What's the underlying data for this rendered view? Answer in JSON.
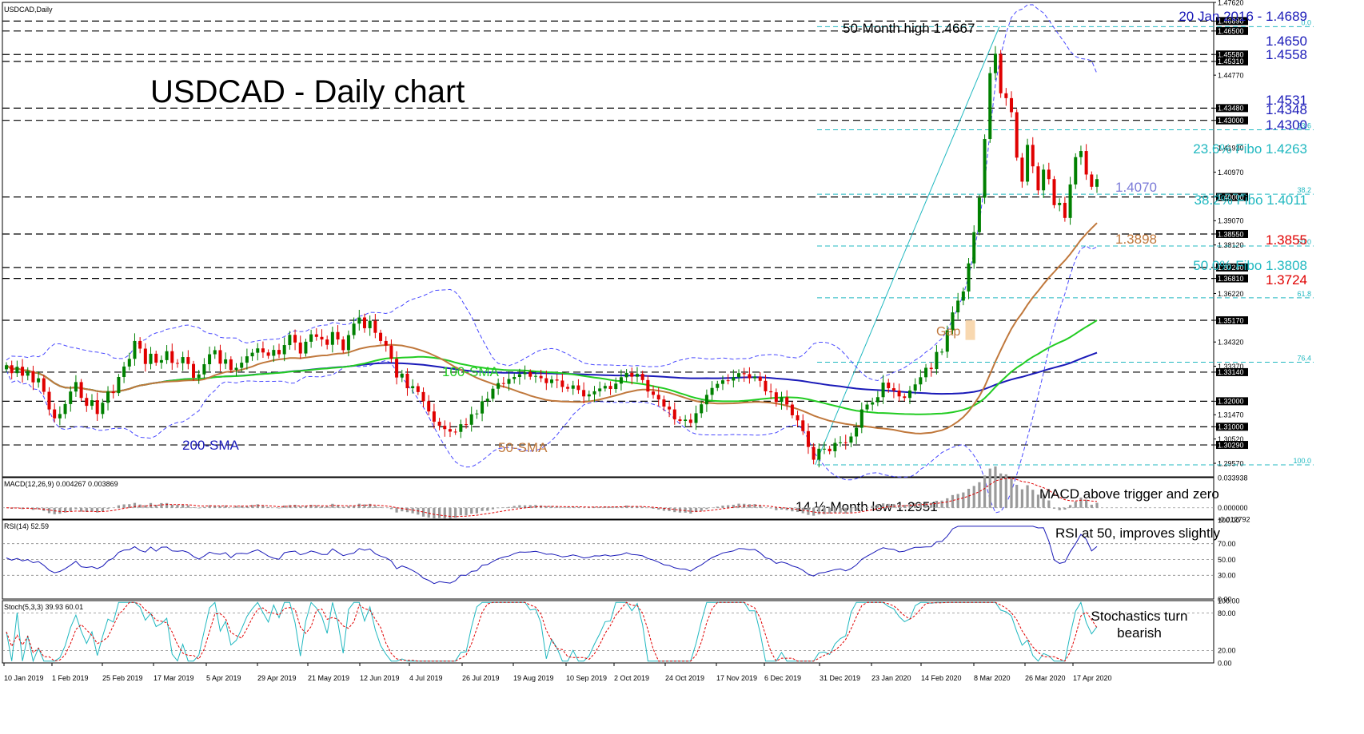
{
  "chart_data": {
    "type": "candlestick",
    "symbol_label": "USDCAD,Daily",
    "title": "USDCAD - Daily chart",
    "x_tick_labels": [
      "10 Jan 2019",
      "1 Feb 2019",
      "25 Feb 2019",
      "17 Mar 2019",
      "5 Apr 2019",
      "29 Apr 2019",
      "21 May 2019",
      "12 Jun 2019",
      "4 Jul 2019",
      "26 Jul 2019",
      "19 Aug 2019",
      "10 Sep 2019",
      "2 Oct 2019",
      "24 Oct 2019",
      "17 Nov 2019",
      "6 Dec 2019",
      "31 Dec 2019",
      "23 Jan 2020",
      "14 Feb 2020",
      "8 Mar 2020",
      "26 Mar 2020",
      "17 Apr 2020"
    ],
    "main_panel": {
      "ylim": [
        1.2904,
        1.4762
      ],
      "y_tick_labels": [
        "1.47620",
        "1.46890",
        "1.46500",
        "1.45580",
        "1.45310",
        "1.44770",
        "1.43480",
        "1.43000",
        "1.41920",
        "1.40970",
        "1.40000",
        "1.39070",
        "1.38550",
        "1.38120",
        "1.37240",
        "1.36810",
        "1.36220",
        "1.35170",
        "1.34320",
        "1.33370",
        "1.33140",
        "1.32000",
        "1.31470",
        "1.31000",
        "1.30520",
        "1.30290",
        "1.29570"
      ],
      "horizontal_levels": [
        1.4689,
        1.465,
        1.4558,
        1.4531,
        1.4348,
        1.43,
        1.4,
        1.3855,
        1.3724,
        1.3681,
        1.3517,
        1.3314,
        1.32,
        1.31,
        1.3029
      ],
      "fibo_levels": [
        {
          "label": "0.0",
          "value": 1.4667
        },
        {
          "label": "23.6",
          "value": 1.4263
        },
        {
          "label": "38.2",
          "value": 1.4011
        },
        {
          "label": "50.0",
          "value": 1.3808
        },
        {
          "label": "61.8",
          "value": 1.3605
        },
        {
          "label": "76.4",
          "value": 1.3353
        },
        {
          "label": "100.0",
          "value": 1.2951
        }
      ],
      "candles": [
        [
          1.3325,
          1.3341
        ],
        [
          1.3341,
          1.331
        ],
        [
          1.331,
          1.3335
        ],
        [
          1.3335,
          1.33
        ],
        [
          1.33,
          1.3318
        ],
        [
          1.3318,
          1.3274
        ],
        [
          1.3274,
          1.329
        ],
        [
          1.329,
          1.3237
        ],
        [
          1.3237,
          1.3168
        ],
        [
          1.3168,
          1.3133
        ],
        [
          1.3133,
          1.315
        ],
        [
          1.315,
          1.3189
        ],
        [
          1.3189,
          1.3238
        ],
        [
          1.3238,
          1.3275
        ],
        [
          1.3275,
          1.3213
        ],
        [
          1.3213,
          1.3182
        ],
        [
          1.3182,
          1.3204
        ],
        [
          1.3204,
          1.315
        ],
        [
          1.315,
          1.3194
        ],
        [
          1.3194,
          1.3238
        ],
        [
          1.3238,
          1.3232
        ],
        [
          1.3232,
          1.3295
        ],
        [
          1.3295,
          1.3336
        ],
        [
          1.3336,
          1.3366
        ],
        [
          1.3366,
          1.3436
        ],
        [
          1.3436,
          1.3406
        ],
        [
          1.3406,
          1.3346
        ],
        [
          1.3346,
          1.3386
        ],
        [
          1.3386,
          1.3351
        ],
        [
          1.3351,
          1.3361
        ],
        [
          1.3361,
          1.3396
        ],
        [
          1.3396,
          1.335
        ],
        [
          1.335,
          1.3349
        ],
        [
          1.3349,
          1.3373
        ],
        [
          1.3373,
          1.3346
        ],
        [
          1.3346,
          1.3292
        ],
        [
          1.3292,
          1.3305
        ],
        [
          1.3305,
          1.3345
        ],
        [
          1.3345,
          1.3384
        ],
        [
          1.3384,
          1.34
        ],
        [
          1.34,
          1.3347
        ],
        [
          1.3347,
          1.3364
        ],
        [
          1.3364,
          1.3323
        ],
        [
          1.3323,
          1.3331
        ],
        [
          1.3331,
          1.3351
        ],
        [
          1.3351,
          1.3376
        ],
        [
          1.3376,
          1.339
        ],
        [
          1.339,
          1.3407
        ],
        [
          1.3407,
          1.3391
        ],
        [
          1.3391,
          1.3378
        ],
        [
          1.3378,
          1.3401
        ],
        [
          1.3401,
          1.3384
        ],
        [
          1.3384,
          1.342
        ],
        [
          1.342,
          1.346
        ],
        [
          1.346,
          1.343
        ],
        [
          1.343,
          1.3387
        ],
        [
          1.3387,
          1.3433
        ],
        [
          1.3433,
          1.3462
        ],
        [
          1.3462,
          1.3452
        ],
        [
          1.3452,
          1.3442
        ],
        [
          1.3442,
          1.3421
        ],
        [
          1.3421,
          1.3471
        ],
        [
          1.3471,
          1.3442
        ],
        [
          1.3442,
          1.34
        ],
        [
          1.34,
          1.3459
        ],
        [
          1.3459,
          1.3504
        ],
        [
          1.3504,
          1.3528
        ],
        [
          1.3528,
          1.3486
        ],
        [
          1.3486,
          1.3515
        ],
        [
          1.3515,
          1.3468
        ],
        [
          1.3468,
          1.3436
        ],
        [
          1.3436,
          1.3418
        ],
        [
          1.3418,
          1.3366
        ],
        [
          1.3366,
          1.3293
        ],
        [
          1.3293,
          1.3308
        ],
        [
          1.3308,
          1.3251
        ],
        [
          1.3251,
          1.3259
        ],
        [
          1.3259,
          1.3236
        ],
        [
          1.3236,
          1.32
        ],
        [
          1.32,
          1.316
        ],
        [
          1.316,
          1.312
        ],
        [
          1.312,
          1.3104
        ],
        [
          1.3104,
          1.3091
        ],
        [
          1.3091,
          1.3081
        ],
        [
          1.3081,
          1.308
        ],
        [
          1.308,
          1.311
        ],
        [
          1.311,
          1.3108
        ],
        [
          1.3108,
          1.3149
        ],
        [
          1.3149,
          1.3152
        ],
        [
          1.3152,
          1.32
        ],
        [
          1.32,
          1.321
        ],
        [
          1.321,
          1.3249
        ],
        [
          1.3249,
          1.3271
        ],
        [
          1.3271,
          1.3268
        ],
        [
          1.3268,
          1.3287
        ],
        [
          1.3287,
          1.3295
        ],
        [
          1.3295,
          1.3306
        ],
        [
          1.3306,
          1.3313
        ],
        [
          1.3313,
          1.3296
        ],
        [
          1.3296,
          1.3299
        ],
        [
          1.3299,
          1.329
        ],
        [
          1.329,
          1.3271
        ],
        [
          1.3271,
          1.3285
        ],
        [
          1.3285,
          1.3281
        ],
        [
          1.3281,
          1.3256
        ],
        [
          1.3256,
          1.3249
        ],
        [
          1.3249,
          1.3262
        ],
        [
          1.3262,
          1.3244
        ],
        [
          1.3244,
          1.3219
        ],
        [
          1.3219,
          1.3227
        ],
        [
          1.3227,
          1.3239
        ],
        [
          1.3239,
          1.325
        ],
        [
          1.325,
          1.326
        ],
        [
          1.326,
          1.3248
        ],
        [
          1.3248,
          1.3269
        ],
        [
          1.3269,
          1.3294
        ],
        [
          1.3294,
          1.3311
        ],
        [
          1.3311,
          1.3296
        ],
        [
          1.3296,
          1.3307
        ],
        [
          1.3307,
          1.3283
        ],
        [
          1.3283,
          1.3238
        ],
        [
          1.3238,
          1.3225
        ],
        [
          1.3225,
          1.3207
        ],
        [
          1.3207,
          1.3179
        ],
        [
          1.3179,
          1.3168
        ],
        [
          1.3168,
          1.3129
        ],
        [
          1.3129,
          1.3123
        ],
        [
          1.3123,
          1.3128
        ],
        [
          1.3128,
          1.3115
        ],
        [
          1.3115,
          1.3153
        ],
        [
          1.3153,
          1.3188
        ],
        [
          1.3188,
          1.3225
        ],
        [
          1.3225,
          1.3252
        ],
        [
          1.3252,
          1.3268
        ],
        [
          1.3268,
          1.3282
        ],
        [
          1.3282,
          1.3281
        ],
        [
          1.3281,
          1.3294
        ],
        [
          1.3294,
          1.331
        ],
        [
          1.331,
          1.3306
        ],
        [
          1.3306,
          1.329
        ],
        [
          1.329,
          1.3296
        ],
        [
          1.3296,
          1.328
        ],
        [
          1.328,
          1.3239
        ],
        [
          1.3239,
          1.3235
        ],
        [
          1.3235,
          1.3197
        ],
        [
          1.3197,
          1.3216
        ],
        [
          1.3216,
          1.3187
        ],
        [
          1.3187,
          1.3145
        ],
        [
          1.3145,
          1.3125
        ],
        [
          1.3125,
          1.3083
        ],
        [
          1.3083,
          1.3021
        ],
        [
          1.3021,
          1.2971
        ],
        [
          1.2971,
          1.3014
        ],
        [
          1.3014,
          1.3014
        ],
        [
          1.3014,
          1.3004
        ],
        [
          1.3004,
          1.3037
        ],
        [
          1.3037,
          1.3039
        ],
        [
          1.3039,
          1.3038
        ],
        [
          1.3038,
          1.3062
        ],
        [
          1.3062,
          1.3096
        ],
        [
          1.3096,
          1.3168
        ],
        [
          1.3168,
          1.3187
        ],
        [
          1.3187,
          1.3196
        ],
        [
          1.3196,
          1.3216
        ],
        [
          1.3216,
          1.3273
        ],
        [
          1.3273,
          1.3251
        ],
        [
          1.3251,
          1.3242
        ],
        [
          1.3242,
          1.3219
        ],
        [
          1.3219,
          1.3213
        ],
        [
          1.3213,
          1.3242
        ],
        [
          1.3242,
          1.3266
        ],
        [
          1.3266,
          1.3294
        ],
        [
          1.3294,
          1.3331
        ],
        [
          1.3331,
          1.3326
        ],
        [
          1.3326,
          1.3393
        ],
        [
          1.3393,
          1.3394
        ],
        [
          1.3394,
          1.3478
        ],
        [
          1.3478,
          1.3548
        ],
        [
          1.3548,
          1.3594
        ],
        [
          1.3594,
          1.363
        ],
        [
          1.363,
          1.374
        ],
        [
          1.374,
          1.3862
        ],
        [
          1.3862,
          1.3997
        ],
        [
          1.3997,
          1.4227
        ],
        [
          1.4227,
          1.4485
        ],
        [
          1.4485,
          1.4561
        ],
        [
          1.4561,
          1.4406
        ],
        [
          1.4406,
          1.4387
        ],
        [
          1.4387,
          1.4332
        ],
        [
          1.4332,
          1.4154
        ],
        [
          1.4154,
          1.406
        ],
        [
          1.406,
          1.4204
        ],
        [
          1.4204,
          1.412
        ],
        [
          1.412,
          1.4026
        ],
        [
          1.4026,
          1.4107
        ],
        [
          1.4107,
          1.407
        ],
        [
          1.407,
          1.3968
        ],
        [
          1.3968,
          1.3977
        ],
        [
          1.3977,
          1.3918
        ],
        [
          1.3918,
          1.4049
        ],
        [
          1.4049,
          1.4156
        ],
        [
          1.4156,
          1.418
        ],
        [
          1.418,
          1.4088
        ],
        [
          1.4088,
          1.404
        ],
        [
          1.404,
          1.407
        ]
      ],
      "sma_50_last": 1.3898,
      "sma_100_last": 1.3517,
      "sma_200_last": 1.339,
      "labels": {
        "sma100": "100-SMA",
        "sma50": "50-SMA",
        "sma200": "200-SMA",
        "gap": "Gap",
        "high": "50-Month high 1.4667",
        "low": "14 ½-Month low 1.2951",
        "r1": "20 Jan 2016 - 1.4689",
        "r2": "1.4650",
        "r3": "1.4558",
        "r4": "1.4531",
        "r5": "1.4348",
        "r6": "1.4300",
        "fib236": "23.6% Fibo 1.4263",
        "fib382": "38.2% Fibo 1.4011",
        "fib50": "50.0% Fibo 1.3808",
        "last": "1.4070",
        "sma50val": "1.3898",
        "s1": "1.3855",
        "s2": "1.3724"
      }
    },
    "macd_panel": {
      "label": "MACD(12,26,9) 0.004267 0.003869",
      "y_tick_labels": [
        "0.033938",
        "0.000000",
        "-0.012792"
      ],
      "ylim": [
        -0.012792,
        0.033938
      ],
      "annotation": "MACD above trigger and zero"
    },
    "rsi_panel": {
      "label": "RSI(14) 52.59",
      "y_tick_labels": [
        "100.00",
        "70.00",
        "50.00",
        "30.00",
        "0.00"
      ],
      "ylim": [
        0,
        100
      ],
      "annotation": "RSI at 50, improves slightly"
    },
    "stoch_panel": {
      "label": "Stoch(5,3,3) 39.93 60.01",
      "y_tick_labels": [
        "100.00",
        "80.00",
        "20.00",
        "0.00"
      ],
      "ylim": [
        0,
        100
      ],
      "annotation_line1": "Stochastics turn",
      "annotation_line2": "bearish"
    },
    "colors": {
      "bull": "#008000",
      "bear": "#e00000",
      "sma50": "#c0783c",
      "sma100": "#22cc22",
      "sma200": "#1a1ab8",
      "bollinger": "#4a4aff",
      "fibo": "#20b8c0",
      "macd_hist": "#9a9a9a",
      "signal": "#e00000",
      "rsi": "#1a1ab8",
      "stoch_main": "#20b8c0",
      "stoch_signal": "#e00000",
      "gap_box": "#f8d8b0",
      "support_red": "#e00000",
      "resistance_blue": "#1a1ab8"
    }
  }
}
